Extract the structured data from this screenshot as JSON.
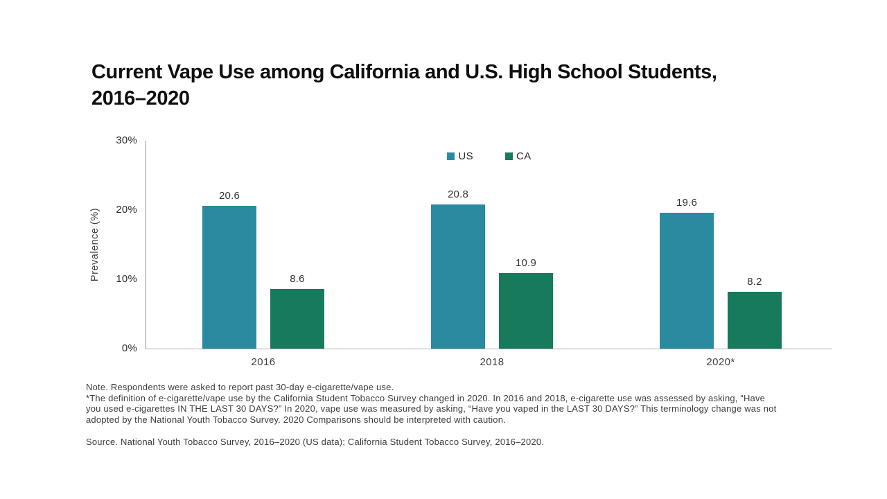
{
  "title": {
    "line1": "Current Vape Use among California and U.S. High School Students,",
    "line2": "2016–2020"
  },
  "chart_data": {
    "type": "bar",
    "title": "Current Vape Use among California and U.S. High School Students, 2016–2020",
    "categories": [
      "2016",
      "2018",
      "2020*"
    ],
    "series": [
      {
        "name": "US",
        "color": "#2A8BA0",
        "values": [
          20.6,
          20.8,
          19.6
        ]
      },
      {
        "name": "CA",
        "color": "#177A5C",
        "values": [
          8.6,
          10.9,
          8.2
        ]
      }
    ],
    "xlabel": "",
    "ylabel": "Prevalence (%)",
    "ylim": [
      0,
      30
    ],
    "y_ticks": [
      {
        "value": 0,
        "label": "0%"
      },
      {
        "value": 10,
        "label": "10%"
      },
      {
        "value": 20,
        "label": "20%"
      },
      {
        "value": 30,
        "label": "30%"
      }
    ],
    "grid": false,
    "legend_position": "top-center",
    "value_labels": true
  },
  "notes": {
    "lines": [
      "Note. Respondents were asked to report past 30-day e-cigarette/vape use.",
      "*The definition of e-cigarette/vape use by the California Student Tobacco Survey changed in 2020. In 2016 and 2018, e-cigarette use was assessed by asking, “Have",
      "you used e-cigarettes IN THE LAST 30 DAYS?” In 2020, vape use was measured by asking, “Have you vaped in the LAST 30 DAYS?” This terminology change was not",
      "adopted by the National Youth Tobacco Survey. 2020 Comparisons should be interpreted with caution."
    ],
    "source": "Source. National Youth Tobacco Survey, 2016–2020 (US data); California Student Tobacco Survey, 2016–2020."
  }
}
